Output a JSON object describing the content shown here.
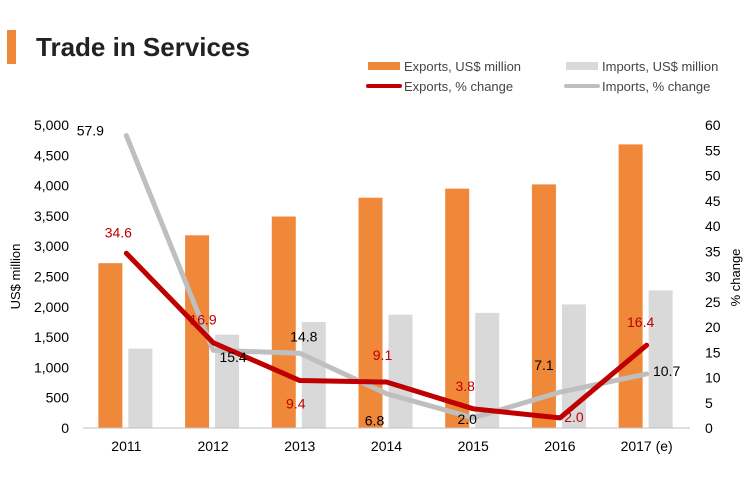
{
  "header": {
    "title": "Trade in Services"
  },
  "colors": {
    "exports_bar": "#f0883a",
    "imports_bar": "#d9d9d9",
    "exports_line": "#c00000",
    "imports_line": "#bfbfbf",
    "axis_text": "#000000",
    "exports_label": "#c00000",
    "imports_label": "#000000"
  },
  "chart_data": {
    "type": "bar",
    "title": "Trade in Services",
    "categories": [
      "2011",
      "2012",
      "2013",
      "2014",
      "2015",
      "2016",
      "2017 (e)"
    ],
    "ylabel": "US$ million",
    "y2label": "% change",
    "ylim": [
      0,
      5000
    ],
    "y_ticks": [
      "0",
      "500",
      "1,000",
      "1,500",
      "2,000",
      "2,500",
      "3,000",
      "3,500",
      "4,000",
      "4,500",
      "5,000"
    ],
    "y2lim": [
      0,
      60
    ],
    "y2_ticks": [
      "0",
      "5",
      "10",
      "15",
      "20",
      "25",
      "30",
      "35",
      "40",
      "45",
      "50",
      "55",
      "60"
    ],
    "grid": false,
    "series": [
      {
        "name": "Exports, US$ million",
        "kind": "bar",
        "axis": "left",
        "values": [
          2720,
          3180,
          3490,
          3800,
          3950,
          4020,
          4680
        ]
      },
      {
        "name": "Imports, US$ million",
        "kind": "bar",
        "axis": "left",
        "values": [
          1310,
          1540,
          1750,
          1870,
          1900,
          2040,
          2270
        ]
      },
      {
        "name": "Exports, % change",
        "kind": "line",
        "axis": "right",
        "values": [
          34.6,
          16.9,
          9.4,
          9.1,
          3.8,
          2.0,
          16.4
        ],
        "labels": [
          "34.6",
          "16.9",
          "9.4",
          "9.1",
          "3.8",
          "2.0",
          "16.4"
        ]
      },
      {
        "name": "Imports, % change",
        "kind": "line",
        "axis": "right",
        "values": [
          57.9,
          15.4,
          14.8,
          6.8,
          2.0,
          7.1,
          10.7
        ],
        "labels": [
          "57.9",
          "15.4",
          "14.8",
          "6.8",
          "2.0",
          "7.1",
          "10.7"
        ]
      }
    ]
  }
}
